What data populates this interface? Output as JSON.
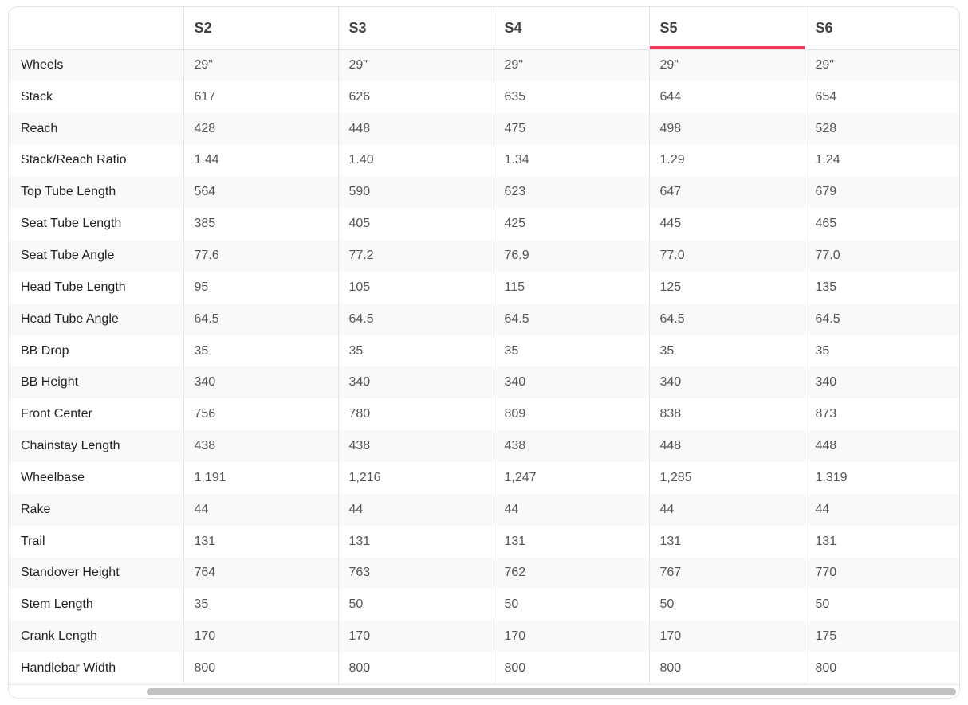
{
  "colors": {
    "accent": "#f0395a"
  },
  "table": {
    "active_column": "S5",
    "headers": [
      "",
      "S2",
      "S3",
      "S4",
      "S5",
      "S6"
    ],
    "rows": [
      {
        "label": "Wheels",
        "values": [
          "29\"",
          "29\"",
          "29\"",
          "29\"",
          "29\""
        ]
      },
      {
        "label": "Stack",
        "values": [
          "617",
          "626",
          "635",
          "644",
          "654"
        ]
      },
      {
        "label": "Reach",
        "values": [
          "428",
          "448",
          "475",
          "498",
          "528"
        ]
      },
      {
        "label": "Stack/Reach Ratio",
        "values": [
          "1.44",
          "1.40",
          "1.34",
          "1.29",
          "1.24"
        ]
      },
      {
        "label": "Top Tube Length",
        "values": [
          "564",
          "590",
          "623",
          "647",
          "679"
        ]
      },
      {
        "label": "Seat Tube Length",
        "values": [
          "385",
          "405",
          "425",
          "445",
          "465"
        ]
      },
      {
        "label": "Seat Tube Angle",
        "values": [
          "77.6",
          "77.2",
          "76.9",
          "77.0",
          "77.0"
        ]
      },
      {
        "label": "Head Tube Length",
        "values": [
          "95",
          "105",
          "115",
          "125",
          "135"
        ]
      },
      {
        "label": "Head Tube Angle",
        "values": [
          "64.5",
          "64.5",
          "64.5",
          "64.5",
          "64.5"
        ]
      },
      {
        "label": "BB Drop",
        "values": [
          "35",
          "35",
          "35",
          "35",
          "35"
        ]
      },
      {
        "label": "BB Height",
        "values": [
          "340",
          "340",
          "340",
          "340",
          "340"
        ]
      },
      {
        "label": "Front Center",
        "values": [
          "756",
          "780",
          "809",
          "838",
          "873"
        ]
      },
      {
        "label": "Chainstay Length",
        "values": [
          "438",
          "438",
          "438",
          "448",
          "448"
        ]
      },
      {
        "label": "Wheelbase",
        "values": [
          "1,191",
          "1,216",
          "1,247",
          "1,285",
          "1,319"
        ]
      },
      {
        "label": "Rake",
        "values": [
          "44",
          "44",
          "44",
          "44",
          "44"
        ]
      },
      {
        "label": "Trail",
        "values": [
          "131",
          "131",
          "131",
          "131",
          "131"
        ]
      },
      {
        "label": "Standover Height",
        "values": [
          "764",
          "763",
          "762",
          "767",
          "770"
        ]
      },
      {
        "label": "Stem Length",
        "values": [
          "35",
          "50",
          "50",
          "50",
          "50"
        ]
      },
      {
        "label": "Crank Length",
        "values": [
          "170",
          "170",
          "170",
          "170",
          "175"
        ]
      },
      {
        "label": "Handlebar Width",
        "values": [
          "800",
          "800",
          "800",
          "800",
          "800"
        ]
      }
    ]
  }
}
